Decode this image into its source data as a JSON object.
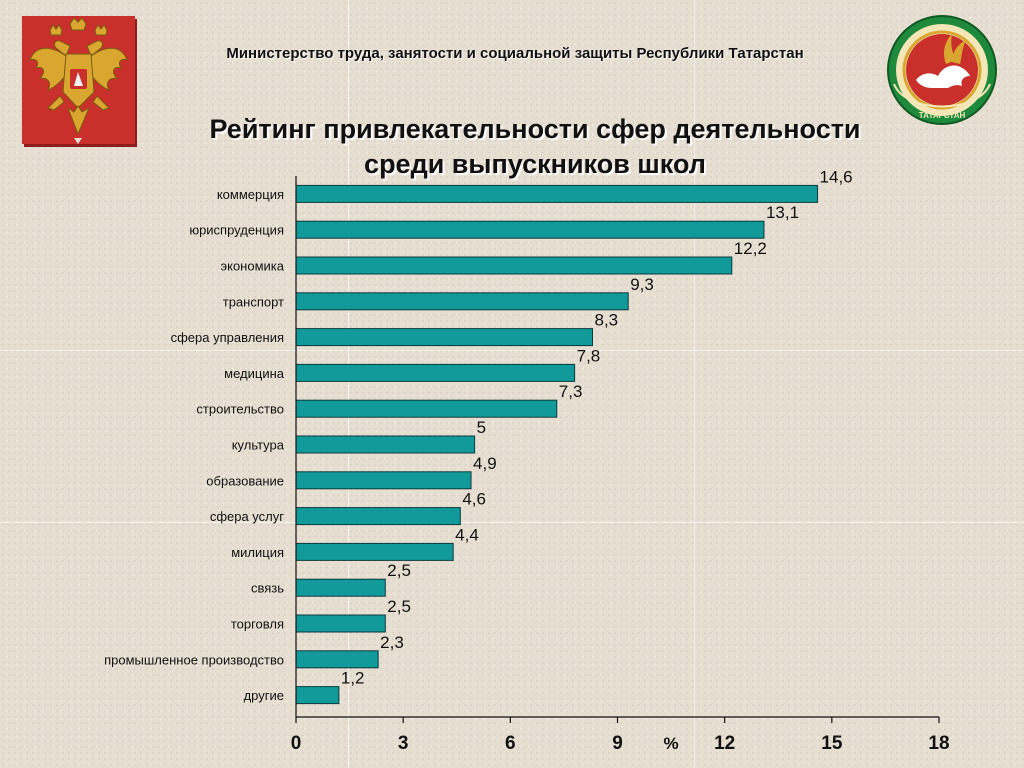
{
  "header": {
    "ministry": "Министерство  труда,  занятости и социальной защиты Республики Татарстан",
    "title_line1": "Рейтинг привлекательности сфер деятельности",
    "title_line2": "среди выпускников школ"
  },
  "emblems": {
    "left": "russia-coat-of-arms",
    "right": "tatarstan-coat-of-arms",
    "right_text": "ТАТАРСТАН"
  },
  "colors": {
    "bar": "#12999a",
    "bar_stroke": "#0a3d3d",
    "emblem_red": "#c9302c",
    "emblem_green": "#1f8a3b"
  },
  "chart_data": {
    "type": "bar",
    "orientation": "horizontal",
    "categories": [
      "коммерция",
      "юриспруденция",
      "экономика",
      "транспорт",
      "сфера управления",
      "медицина",
      "строительство",
      "культура",
      "образование",
      "сфера услуг",
      "милиция",
      "связь",
      "торговля",
      "промышленное производство",
      "другие"
    ],
    "values": [
      14.6,
      13.1,
      12.2,
      9.3,
      8.3,
      7.8,
      7.3,
      5,
      4.9,
      4.6,
      4.4,
      2.5,
      2.5,
      2.3,
      1.2
    ],
    "value_labels": [
      "14,6",
      "13,1",
      "12,2",
      "9,3",
      "8,3",
      "7,8",
      "7,3",
      "5",
      "4,9",
      "4,6",
      "4,4",
      "2,5",
      "2,5",
      "2,3",
      "1,2"
    ],
    "xlim": [
      0,
      18
    ],
    "xticks": [
      0,
      3,
      6,
      9,
      12,
      15,
      18
    ],
    "xunit": "%",
    "grid": false,
    "legend": "none"
  }
}
